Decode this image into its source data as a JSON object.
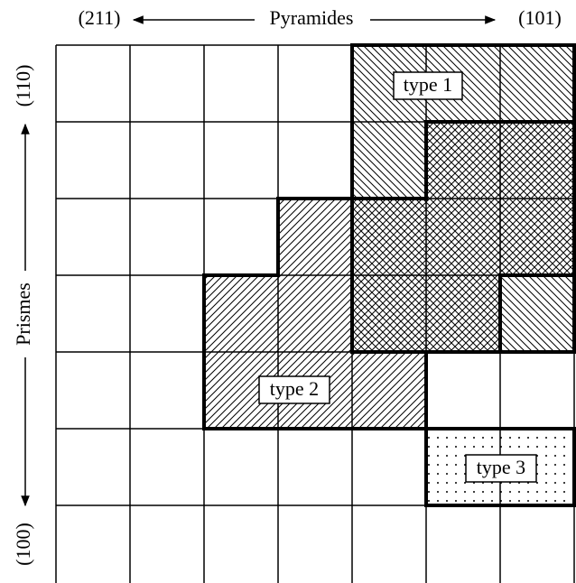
{
  "axes": {
    "top_left": "(211)",
    "top_title": "Pyramides",
    "top_right": "(101)",
    "left_top": "(110)",
    "left_title": "Prismes",
    "left_bottom": "(100)"
  },
  "regions": [
    {
      "label": "type 1"
    },
    {
      "label": "type 2"
    },
    {
      "label": "type 3"
    }
  ]
}
